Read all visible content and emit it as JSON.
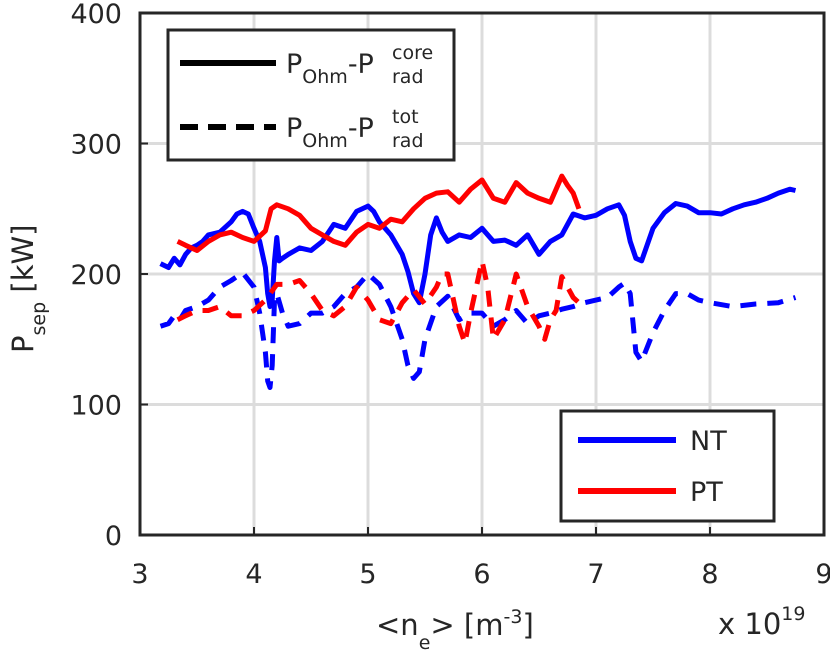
{
  "chart_data": {
    "type": "line",
    "xlabel": {
      "main": "<n",
      "sub": "e",
      "close": "> [m",
      "sup": "-3",
      "end": "]"
    },
    "ylabel": {
      "main": "P",
      "sub": "sep",
      "unit": " [kW]"
    },
    "x_multiplier": {
      "base": "x 10",
      "exp": "19"
    },
    "xlim": [
      3,
      9
    ],
    "ylim": [
      0,
      400
    ],
    "xticks": [
      "3",
      "4",
      "5",
      "6",
      "7",
      "8",
      "9"
    ],
    "yticks": [
      "0",
      "100",
      "200",
      "300",
      "400"
    ],
    "grid": true,
    "legend_style": {
      "placement": "top-left",
      "entries": [
        {
          "style": "solid",
          "main": "P",
          "sub1": "Ohm",
          "mid": "-P",
          "sup": "core",
          "sub2": "rad"
        },
        {
          "style": "dashed",
          "main": "P",
          "sub1": "Ohm",
          "mid": "-P",
          "sup": "tot",
          "sub2": "rad"
        }
      ]
    },
    "legend_color": {
      "placement": "bottom-right",
      "entries": [
        {
          "name": "NT",
          "color": "#0000ff"
        },
        {
          "name": "PT",
          "color": "#ff0000"
        }
      ]
    },
    "series": [
      {
        "name": "NT",
        "style": "solid",
        "color": "#0000ff",
        "x": [
          3.18,
          3.25,
          3.3,
          3.35,
          3.4,
          3.45,
          3.5,
          3.55,
          3.6,
          3.7,
          3.8,
          3.85,
          3.9,
          3.95,
          4.0,
          4.05,
          4.1,
          4.12,
          4.14,
          4.16,
          4.18,
          4.2,
          4.22,
          4.25,
          4.3,
          4.4,
          4.5,
          4.6,
          4.7,
          4.8,
          4.9,
          5.0,
          5.05,
          5.1,
          5.2,
          5.3,
          5.35,
          5.4,
          5.45,
          5.5,
          5.55,
          5.6,
          5.65,
          5.7,
          5.8,
          5.9,
          6.0,
          6.1,
          6.2,
          6.3,
          6.4,
          6.5,
          6.6,
          6.7,
          6.8,
          6.9,
          7.0,
          7.1,
          7.2,
          7.25,
          7.3,
          7.35,
          7.4,
          7.5,
          7.6,
          7.7,
          7.8,
          7.9,
          8.0,
          8.1,
          8.2,
          8.3,
          8.4,
          8.5,
          8.6,
          8.7,
          8.75
        ],
        "y": [
          208,
          205,
          212,
          207,
          215,
          220,
          222,
          225,
          230,
          232,
          240,
          246,
          248,
          246,
          235,
          225,
          205,
          185,
          175,
          180,
          210,
          228,
          210,
          212,
          215,
          220,
          218,
          225,
          238,
          235,
          248,
          252,
          248,
          240,
          230,
          215,
          202,
          185,
          178,
          200,
          230,
          243,
          232,
          225,
          230,
          228,
          235,
          225,
          226,
          222,
          230,
          215,
          225,
          230,
          246,
          243,
          245,
          250,
          253,
          245,
          225,
          212,
          210,
          235,
          247,
          254,
          252,
          247,
          247,
          246,
          250,
          253,
          255,
          258,
          262,
          265,
          264
        ]
      },
      {
        "name": "NT",
        "style": "dashed",
        "color": "#0000ff",
        "x": [
          3.18,
          3.25,
          3.3,
          3.35,
          3.4,
          3.5,
          3.6,
          3.7,
          3.8,
          3.9,
          4.0,
          4.05,
          4.1,
          4.12,
          4.14,
          4.16,
          4.18,
          4.2,
          4.25,
          4.3,
          4.4,
          4.5,
          4.6,
          4.7,
          4.8,
          4.9,
          5.0,
          5.1,
          5.2,
          5.3,
          5.35,
          5.4,
          5.45,
          5.5,
          5.6,
          5.7,
          5.8,
          5.9,
          6.0,
          6.1,
          6.2,
          6.3,
          6.4,
          6.5,
          6.6,
          6.7,
          6.8,
          6.9,
          7.0,
          7.1,
          7.2,
          7.25,
          7.3,
          7.35,
          7.4,
          7.5,
          7.6,
          7.7,
          7.8,
          7.9,
          8.0,
          8.2,
          8.4,
          8.6,
          8.75
        ],
        "y": [
          160,
          162,
          168,
          165,
          172,
          175,
          180,
          190,
          195,
          201,
          190,
          170,
          140,
          118,
          113,
          130,
          180,
          185,
          170,
          160,
          162,
          170,
          170,
          175,
          185,
          190,
          200,
          192,
          175,
          150,
          130,
          120,
          125,
          150,
          175,
          183,
          165,
          170,
          170,
          160,
          165,
          172,
          162,
          168,
          170,
          173,
          175,
          178,
          180,
          182,
          190,
          193,
          185,
          140,
          133,
          155,
          172,
          185,
          185,
          180,
          178,
          175,
          177,
          178,
          182
        ]
      },
      {
        "name": "PT",
        "style": "solid",
        "color": "#ff0000",
        "x": [
          3.33,
          3.4,
          3.5,
          3.6,
          3.7,
          3.8,
          3.9,
          4.0,
          4.1,
          4.15,
          4.2,
          4.3,
          4.4,
          4.5,
          4.6,
          4.7,
          4.8,
          4.9,
          5.0,
          5.1,
          5.2,
          5.3,
          5.4,
          5.5,
          5.6,
          5.7,
          5.8,
          5.9,
          6.0,
          6.1,
          6.2,
          6.3,
          6.4,
          6.5,
          6.6,
          6.65,
          6.7,
          6.75,
          6.8,
          6.85
        ],
        "y": [
          225,
          222,
          218,
          225,
          230,
          232,
          228,
          225,
          233,
          250,
          253,
          250,
          245,
          235,
          230,
          225,
          222,
          232,
          238,
          235,
          242,
          240,
          250,
          258,
          262,
          263,
          255,
          265,
          272,
          258,
          255,
          270,
          262,
          258,
          255,
          265,
          275,
          268,
          262,
          250
        ]
      },
      {
        "name": "PT",
        "style": "dashed",
        "color": "#ff0000",
        "x": [
          3.33,
          3.4,
          3.5,
          3.6,
          3.7,
          3.8,
          3.9,
          4.0,
          4.1,
          4.2,
          4.3,
          4.4,
          4.5,
          4.6,
          4.7,
          4.8,
          4.9,
          5.0,
          5.1,
          5.2,
          5.3,
          5.4,
          5.5,
          5.6,
          5.65,
          5.7,
          5.8,
          5.85,
          5.9,
          6.0,
          6.05,
          6.1,
          6.2,
          6.3,
          6.4,
          6.5,
          6.55,
          6.6,
          6.65,
          6.7,
          6.8,
          6.85
        ],
        "y": [
          165,
          168,
          172,
          172,
          175,
          168,
          168,
          172,
          180,
          192,
          192,
          195,
          185,
          172,
          168,
          175,
          190,
          180,
          165,
          162,
          178,
          188,
          177,
          190,
          200,
          200,
          160,
          147,
          170,
          210,
          190,
          150,
          165,
          200,
          175,
          160,
          150,
          165,
          172,
          198,
          182,
          178
        ]
      }
    ]
  }
}
